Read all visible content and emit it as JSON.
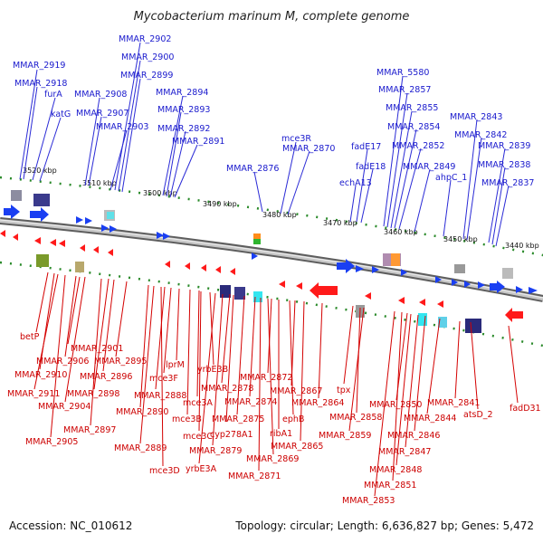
{
  "title": "Mycobacterium marinum M, complete genome",
  "footer": {
    "accession": "Accession: NC_010612",
    "summary": "Topology: circular; Length: 6,636,827 bp; Genes: 5,472"
  },
  "colors": {
    "forward_gene": "#1a3ff2",
    "reverse_gene": "#ff1a1a",
    "label_top": "#1a1acd",
    "label_bottom": "#cc0000",
    "backbone": "#8c8c8c",
    "ticks": "#2a8a2a"
  },
  "scale_labels": [
    "3520 kbp",
    "3510 kbp",
    "3500 kbp",
    "3490 kbp",
    "3480 kbp",
    "3470 kbp",
    "3460 kbp",
    "3450 kbp",
    "3440 kbp"
  ],
  "forward_labels": [
    "MMAR_2919",
    "MMAR_2918",
    "furA",
    "katG",
    "MMAR_2908",
    "MMAR_2907",
    "MMAR_2902",
    "MMAR_2900",
    "MMAR_2899",
    "MMAR_2903",
    "MMAR_2894",
    "MMAR_2893",
    "MMAR_2892",
    "MMAR_2891",
    "MMAR_2876",
    "mce3R",
    "MMAR_2870",
    "MMAR_5580",
    "MMAR_2857",
    "MMAR_2855",
    "MMAR_2854",
    "MMAR_2852",
    "fadE17",
    "fadE18",
    "echA13",
    "MMAR_2849",
    "ahpC_1",
    "MMAR_2843",
    "MMAR_2842",
    "MMAR_2839",
    "MMAR_2838",
    "MMAR_2837"
  ],
  "reverse_labels": [
    "betP",
    "MMAR_2901",
    "MMAR_2906",
    "MMAR_2895",
    "MMAR_2910",
    "MMAR_2896",
    "MMAR_2911",
    "MMAR_2898",
    "MMAR_2904",
    "MMAR_2897",
    "MMAR_2905",
    "MMAR_2889",
    "mce3D",
    "MMAR_2890",
    "MMAR_2888",
    "mce3F",
    "lprM",
    "yrbE3B",
    "mce3A",
    "mce3B",
    "mce3C",
    "yrbE3A",
    "cyp278A1",
    "MMAR_2879",
    "MMAR_2878",
    "MMAR_2875",
    "MMAR_2874",
    "MMAR_2872",
    "MMAR_2867",
    "MMAR_2869",
    "MMAR_2871",
    "ribA1",
    "ephB",
    "MMAR_2865",
    "MMAR_2864",
    "tpx",
    "MMAR_2858",
    "MMAR_2859",
    "MMAR_2850",
    "MMAR_2846",
    "MMAR_2847",
    "MMAR_2848",
    "MMAR_2851",
    "MMAR_2853",
    "MMAR_2844",
    "MMAR_2841",
    "atsD_2",
    "fadD31"
  ]
}
